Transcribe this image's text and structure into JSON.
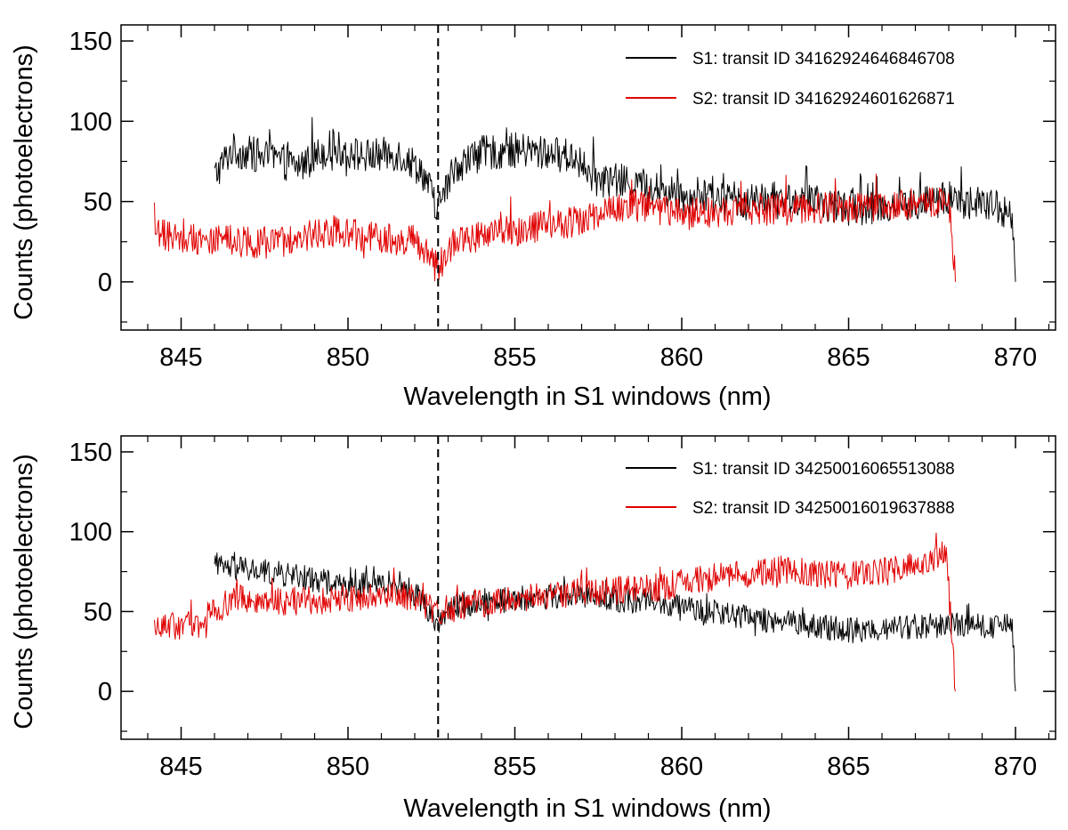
{
  "figure": {
    "panels": 2,
    "shared_xlabel": "Wavelength in S1 windows (nm)",
    "shared_ylabel": "Counts (photoelectrons)"
  },
  "colors": {
    "s1": "#000000",
    "s2": "#e00000",
    "marker": "#000000"
  },
  "chart_data": [
    {
      "type": "line",
      "title": "",
      "xlabel": "Wavelength in S1 windows (nm)",
      "ylabel": "Counts (photoelectrons)",
      "xlim": [
        843.2,
        871.2
      ],
      "ylim": [
        -30,
        160
      ],
      "xticks": [
        845,
        850,
        855,
        860,
        865,
        870
      ],
      "xtick_labels": [
        "845",
        "850",
        "855",
        "860",
        "865",
        "870"
      ],
      "yticks": [
        0,
        50,
        100,
        150
      ],
      "ytick_labels": [
        "0",
        "50",
        "100",
        "150"
      ],
      "reference_line": {
        "x": 852.7,
        "style": "dashed"
      },
      "legend_position": "top-right",
      "series": [
        {
          "name": "S1: transit ID 34162924646846708",
          "color": "#000000",
          "x_start": 846.0,
          "x_end": 870.0,
          "anchors": [
            [
              846.0,
              66
            ],
            [
              846.5,
              82
            ],
            [
              847.5,
              78
            ],
            [
              848.5,
              72
            ],
            [
              849.5,
              84
            ],
            [
              850.5,
              78
            ],
            [
              851.5,
              80
            ],
            [
              852.2,
              70
            ],
            [
              852.7,
              45
            ],
            [
              853.2,
              72
            ],
            [
              854.0,
              80
            ],
            [
              855.0,
              82
            ],
            [
              856.0,
              80
            ],
            [
              856.8,
              78
            ],
            [
              857.3,
              64
            ],
            [
              858.5,
              62
            ],
            [
              860.0,
              54
            ],
            [
              862.0,
              50
            ],
            [
              863.0,
              52
            ],
            [
              865.0,
              46
            ],
            [
              867.0,
              48
            ],
            [
              868.0,
              52
            ],
            [
              869.5,
              46
            ],
            [
              869.9,
              40
            ],
            [
              870.0,
              0
            ]
          ],
          "amplitude": 11
        },
        {
          "name": "S2: transit ID 34162924601626871",
          "color": "#e00000",
          "x_start": 844.2,
          "x_end": 868.2,
          "anchors": [
            [
              844.2,
              30
            ],
            [
              846.0,
              26
            ],
            [
              848.0,
              24
            ],
            [
              849.5,
              32
            ],
            [
              850.5,
              28
            ],
            [
              852.0,
              26
            ],
            [
              852.7,
              8
            ],
            [
              853.2,
              26
            ],
            [
              855.0,
              32
            ],
            [
              857.0,
              38
            ],
            [
              858.5,
              48
            ],
            [
              860.0,
              42
            ],
            [
              862.0,
              44
            ],
            [
              864.0,
              46
            ],
            [
              866.0,
              46
            ],
            [
              867.5,
              50
            ],
            [
              868.0,
              52
            ],
            [
              868.1,
              30
            ],
            [
              868.2,
              0
            ]
          ],
          "amplitude": 10
        }
      ]
    },
    {
      "type": "line",
      "title": "",
      "xlabel": "Wavelength in S1 windows (nm)",
      "ylabel": "Counts (photoelectrons)",
      "xlim": [
        843.2,
        871.2
      ],
      "ylim": [
        -30,
        160
      ],
      "xticks": [
        845,
        850,
        855,
        860,
        865,
        870
      ],
      "xtick_labels": [
        "845",
        "850",
        "855",
        "860",
        "865",
        "870"
      ],
      "yticks": [
        0,
        50,
        100,
        150
      ],
      "ytick_labels": [
        "0",
        "50",
        "100",
        "150"
      ],
      "reference_line": {
        "x": 852.7,
        "style": "dashed"
      },
      "legend_position": "top-right",
      "series": [
        {
          "name": "S1: transit ID 34250016065513088",
          "color": "#000000",
          "x_start": 846.0,
          "x_end": 870.0,
          "anchors": [
            [
              846.0,
              78
            ],
            [
              847.0,
              76
            ],
            [
              848.5,
              72
            ],
            [
              850.0,
              66
            ],
            [
              851.5,
              68
            ],
            [
              852.2,
              58
            ],
            [
              852.7,
              42
            ],
            [
              853.2,
              54
            ],
            [
              855.0,
              58
            ],
            [
              857.0,
              60
            ],
            [
              859.0,
              56
            ],
            [
              861.0,
              48
            ],
            [
              863.0,
              44
            ],
            [
              865.0,
              38
            ],
            [
              866.5,
              40
            ],
            [
              868.0,
              42
            ],
            [
              869.5,
              40
            ],
            [
              869.9,
              44
            ],
            [
              870.0,
              0
            ]
          ],
          "amplitude": 8
        },
        {
          "name": "S2: transit ID 34250016019637888",
          "color": "#e00000",
          "x_start": 844.2,
          "x_end": 868.2,
          "anchors": [
            [
              844.2,
              40
            ],
            [
              845.5,
              42
            ],
            [
              846.5,
              58
            ],
            [
              848.0,
              56
            ],
            [
              850.0,
              58
            ],
            [
              851.5,
              62
            ],
            [
              852.7,
              50
            ],
            [
              853.5,
              54
            ],
            [
              855.0,
              58
            ],
            [
              857.0,
              62
            ],
            [
              859.0,
              64
            ],
            [
              861.0,
              72
            ],
            [
              863.0,
              76
            ],
            [
              865.0,
              72
            ],
            [
              867.0,
              78
            ],
            [
              867.9,
              88
            ],
            [
              868.0,
              64
            ],
            [
              868.2,
              0
            ]
          ],
          "amplitude": 9
        }
      ]
    }
  ]
}
